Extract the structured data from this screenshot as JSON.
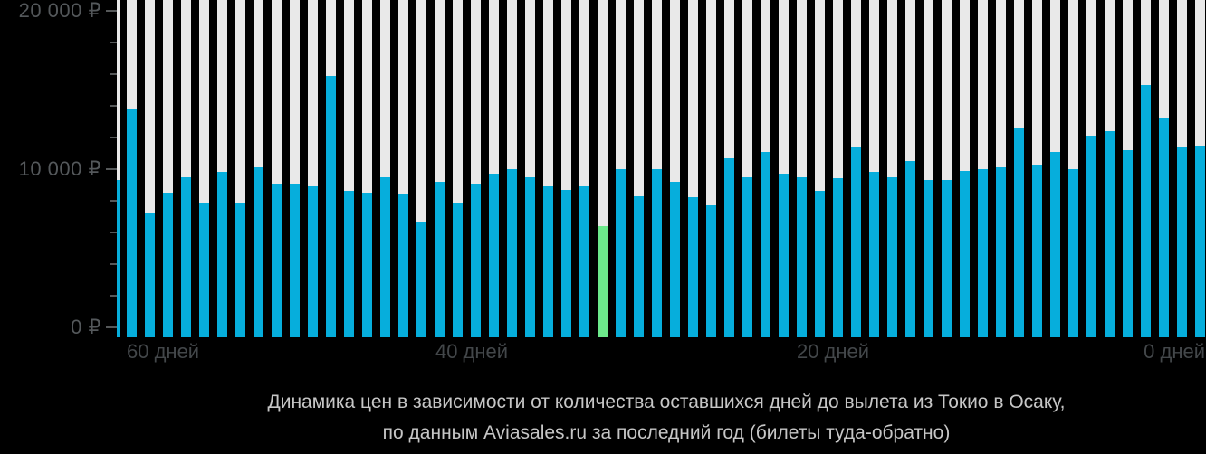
{
  "page": {
    "background": "#000000"
  },
  "chart_data": {
    "type": "bar",
    "title_line1": "Динамика цен в зависимости от количества оставшихся дней до вылета из Токио в Осаку,",
    "title_line2": "по данным Aviasales.ru за последний год (билеты туда-обратно)",
    "x_axis": {
      "unit": "дней до вылета",
      "ticks": [
        {
          "day": 60,
          "label": "60 дней",
          "align": "left"
        },
        {
          "day": 40,
          "label": "40 дней",
          "align": "center"
        },
        {
          "day": 20,
          "label": "20 дней",
          "align": "center"
        },
        {
          "day": 0,
          "label": "0 дней",
          "align": "right"
        }
      ]
    },
    "y_axis": {
      "currency": "₽",
      "min": 0,
      "max": 20000,
      "minor_step": 2000,
      "major_ticks": [
        {
          "value": 20000,
          "label": "20 000 ₽"
        },
        {
          "value": 10000,
          "label": "10 000 ₽"
        },
        {
          "value": 0,
          "label": "0 ₽"
        }
      ]
    },
    "colors": {
      "bar": "#06aedc",
      "highlight": "#6de98b",
      "track": "#e9e9e9",
      "background": "#000000"
    },
    "series": [
      {
        "day": 61,
        "value": 9300,
        "clipped": true
      },
      {
        "day": 60,
        "value": 13800
      },
      {
        "day": 59,
        "value": 7200
      },
      {
        "day": 58,
        "value": 8500
      },
      {
        "day": 57,
        "value": 9500
      },
      {
        "day": 56,
        "value": 7900
      },
      {
        "day": 55,
        "value": 9800
      },
      {
        "day": 54,
        "value": 7900
      },
      {
        "day": 53,
        "value": 10100
      },
      {
        "day": 52,
        "value": 9000
      },
      {
        "day": 51,
        "value": 9100
      },
      {
        "day": 50,
        "value": 8900
      },
      {
        "day": 49,
        "value": 15900
      },
      {
        "day": 48,
        "value": 8600
      },
      {
        "day": 47,
        "value": 8500
      },
      {
        "day": 46,
        "value": 9500
      },
      {
        "day": 45,
        "value": 8400
      },
      {
        "day": 44,
        "value": 6700
      },
      {
        "day": 43,
        "value": 9200
      },
      {
        "day": 42,
        "value": 7900
      },
      {
        "day": 41,
        "value": 9000
      },
      {
        "day": 40,
        "value": 9700
      },
      {
        "day": 39,
        "value": 10000
      },
      {
        "day": 38,
        "value": 9500
      },
      {
        "day": 37,
        "value": 8900
      },
      {
        "day": 36,
        "value": 8700
      },
      {
        "day": 35,
        "value": 8900
      },
      {
        "day": 34,
        "value": 6400,
        "highlight": true
      },
      {
        "day": 33,
        "value": 10000
      },
      {
        "day": 32,
        "value": 8300
      },
      {
        "day": 31,
        "value": 10000
      },
      {
        "day": 30,
        "value": 9200
      },
      {
        "day": 29,
        "value": 8200
      },
      {
        "day": 28,
        "value": 7700
      },
      {
        "day": 27,
        "value": 10700
      },
      {
        "day": 26,
        "value": 9500
      },
      {
        "day": 25,
        "value": 11100
      },
      {
        "day": 24,
        "value": 9700
      },
      {
        "day": 23,
        "value": 9500
      },
      {
        "day": 22,
        "value": 8600
      },
      {
        "day": 21,
        "value": 9400
      },
      {
        "day": 20,
        "value": 11400
      },
      {
        "day": 19,
        "value": 9800
      },
      {
        "day": 18,
        "value": 9500
      },
      {
        "day": 17,
        "value": 10500
      },
      {
        "day": 16,
        "value": 9300
      },
      {
        "day": 15,
        "value": 9300
      },
      {
        "day": 14,
        "value": 9900
      },
      {
        "day": 13,
        "value": 10000
      },
      {
        "day": 12,
        "value": 10100
      },
      {
        "day": 11,
        "value": 12600
      },
      {
        "day": 10,
        "value": 10300
      },
      {
        "day": 9,
        "value": 11100
      },
      {
        "day": 8,
        "value": 10000
      },
      {
        "day": 7,
        "value": 12100
      },
      {
        "day": 6,
        "value": 12400
      },
      {
        "day": 5,
        "value": 11200
      },
      {
        "day": 4,
        "value": 15300
      },
      {
        "day": 3,
        "value": 13200
      },
      {
        "day": 2,
        "value": 11400
      },
      {
        "day": 1,
        "value": 11500
      }
    ]
  }
}
